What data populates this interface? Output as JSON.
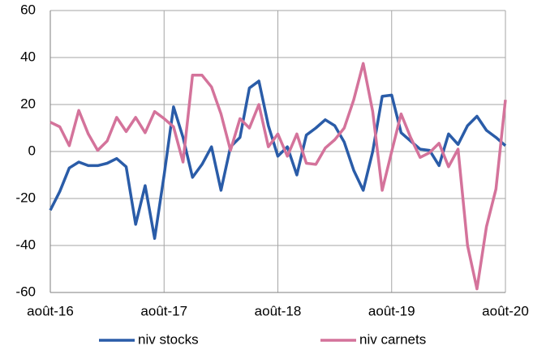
{
  "chart_data": {
    "type": "line",
    "categories": [
      "août-16",
      null,
      null,
      null,
      null,
      null,
      null,
      null,
      null,
      null,
      null,
      null,
      "août-17",
      null,
      null,
      null,
      null,
      null,
      null,
      null,
      null,
      null,
      null,
      null,
      "août-18",
      null,
      null,
      null,
      null,
      null,
      null,
      null,
      null,
      null,
      null,
      null,
      "août-19",
      null,
      null,
      null,
      null,
      null,
      null,
      null,
      null,
      null,
      null,
      null,
      "août-20"
    ],
    "series": [
      {
        "name": "niv stocks",
        "color": "#2a5ca8",
        "values": [
          -25,
          -17,
          -7,
          -4.5,
          -6,
          -6,
          -5,
          -3,
          -6.5,
          -31,
          -14.5,
          -37,
          -10,
          19,
          6,
          -11,
          -5.5,
          2,
          -16.5,
          2,
          6,
          27,
          30,
          11,
          -2,
          2,
          -10,
          7,
          10,
          13.5,
          11,
          4,
          -8,
          -16.5,
          0,
          23.5,
          24,
          8,
          4.5,
          1,
          0.5,
          -6,
          7.5,
          3,
          11,
          15,
          9,
          6,
          2.5
        ]
      },
      {
        "name": "niv carnets",
        "color": "#d4739b",
        "values": [
          12.5,
          10.5,
          2.5,
          17.5,
          7.5,
          0.5,
          4.5,
          14.5,
          8.5,
          14.5,
          8,
          17,
          14,
          10.5,
          -4.5,
          32.5,
          32.5,
          27.5,
          16,
          0.5,
          14,
          10,
          20,
          2,
          7.5,
          -2,
          7.5,
          -5,
          -5.5,
          1.5,
          5,
          10,
          22,
          37.5,
          17,
          -16.5,
          0,
          16,
          6,
          -2.5,
          -0.5,
          3.5,
          -6.5,
          1,
          -40,
          -58.5,
          -32,
          -16,
          22
        ]
      }
    ],
    "ylim": [
      -60,
      60
    ],
    "yticks": [
      -60,
      -40,
      -20,
      0,
      20,
      40,
      60
    ],
    "grid": true
  }
}
